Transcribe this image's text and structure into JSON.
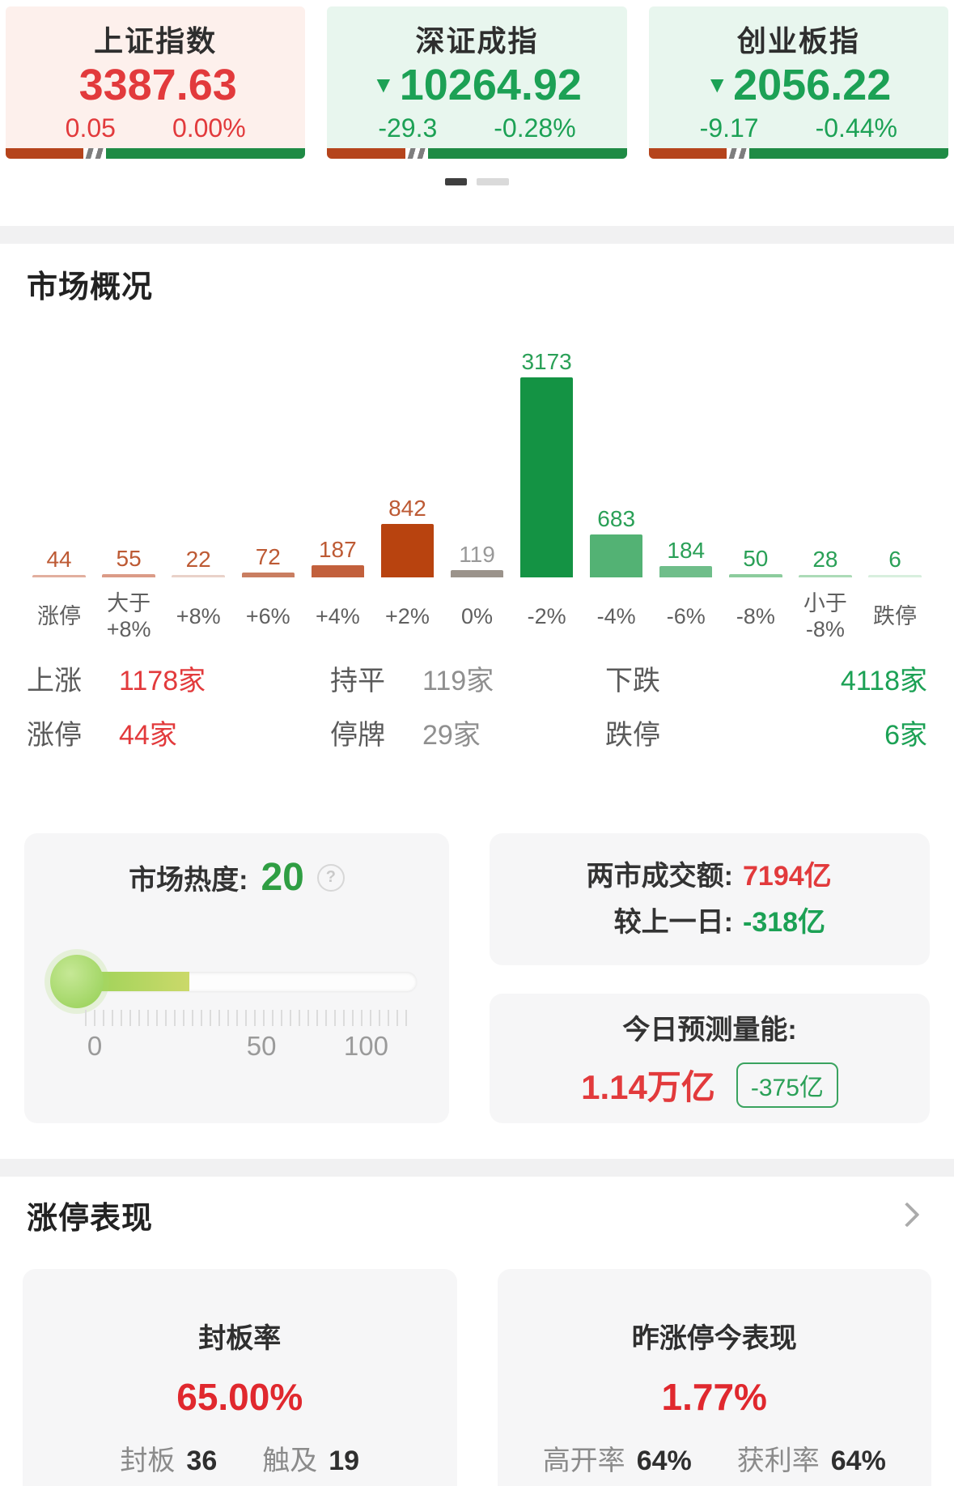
{
  "colors": {
    "up": "#e23a3c",
    "down": "#1ca155",
    "flat": "#8f8f8f",
    "stripe_red": "#b5441c",
    "stripe_green": "#1f8b45"
  },
  "index_cards": [
    {
      "name": "上证指数",
      "arrow": "",
      "value": "3387.63",
      "change": "0.05",
      "change_pct": "0.00%",
      "bg": "#fdf0ec",
      "text_color": "#e23a3c",
      "stripe_red_pct": 26
    },
    {
      "name": "深证成指",
      "arrow": "▼",
      "value": "10264.92",
      "change": "-29.3",
      "change_pct": "-0.28%",
      "bg": "#e8f6ee",
      "text_color": "#1ca155",
      "stripe_red_pct": 26
    },
    {
      "name": "创业板指",
      "arrow": "▼",
      "value": "2056.22",
      "change": "-9.17",
      "change_pct": "-0.44%",
      "bg": "#e8f6ee",
      "text_color": "#1ca155",
      "stripe_red_pct": 26
    }
  ],
  "market_overview": {
    "title": "市场概况",
    "chart_data": {
      "type": "bar",
      "categories": [
        "涨停",
        "大于\n+8%",
        "+8%",
        "+6%",
        "+4%",
        "+2%",
        "0%",
        "-2%",
        "-4%",
        "-6%",
        "-8%",
        "小于\n-8%",
        "跌停"
      ],
      "values": [
        44,
        55,
        22,
        72,
        187,
        842,
        119,
        3173,
        683,
        184,
        50,
        28,
        6
      ],
      "bar_colors": [
        "#e2af9f",
        "#db9b87",
        "#e9d2c9",
        "#c97e61",
        "#c2603c",
        "#b8430f",
        "#9b938b",
        "#149344",
        "#53b274",
        "#6fbe8a",
        "#8ccc9d",
        "#acdbb7",
        "#d8efde"
      ],
      "label_colors": [
        "#bd5a34",
        "#bd5a34",
        "#bd5a34",
        "#bd5a34",
        "#bd5a34",
        "#bd5a34",
        "#999999",
        "#2aa057",
        "#2aa057",
        "#2aa057",
        "#2aa057",
        "#2aa057",
        "#2aa057"
      ],
      "title": "市场概况",
      "xlabel": "",
      "ylabel": "",
      "ylim": [
        0,
        3173
      ],
      "grid": false,
      "legend": false
    },
    "stats": [
      {
        "label": "上涨",
        "value": "1178家",
        "color": "#e23a3c"
      },
      {
        "label": "持平",
        "value": "119家",
        "color": "#8f8f8f"
      },
      {
        "label": "下跌",
        "value": "4118家",
        "color": "#1ca155"
      },
      {
        "label": "涨停",
        "value": "44家",
        "color": "#e23a3c"
      },
      {
        "label": "停牌",
        "value": "29家",
        "color": "#8f8f8f"
      },
      {
        "label": "跌停",
        "value": "6家",
        "color": "#1ca155"
      }
    ]
  },
  "heat_card": {
    "label": "市场热度:",
    "value": "20",
    "value_color": "#2f9e43",
    "help_icon": "question-icon",
    "fill_pct": 33,
    "ticks": [
      "0",
      "50",
      "100"
    ]
  },
  "turnover_card": {
    "rows": [
      {
        "label": "两市成交额:",
        "value": "7194亿",
        "color": "#e23a3c"
      },
      {
        "label": "较上一日:",
        "value": "-318亿",
        "color": "#1ca155"
      }
    ]
  },
  "forecast_card": {
    "label": "今日预测量能:",
    "value": "1.14万亿",
    "badge": "-375亿"
  },
  "limit_up_section": {
    "title": "涨停表现",
    "cards": [
      {
        "title": "封板率",
        "value": "65.00%",
        "stats": [
          {
            "label": "封板",
            "value": "36"
          },
          {
            "label": "触及",
            "value": "19"
          }
        ]
      },
      {
        "title": "昨涨停今表现",
        "value": "1.77%",
        "stats": [
          {
            "label": "高开率",
            "value": "64%"
          },
          {
            "label": "获利率",
            "value": "64%"
          }
        ]
      }
    ]
  }
}
